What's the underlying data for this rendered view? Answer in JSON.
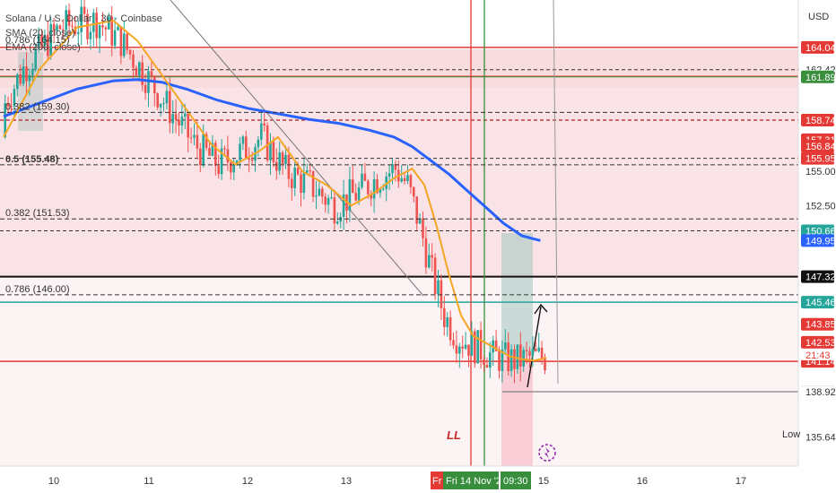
{
  "header": {
    "symbol": "Solana / U.S. Dollar · 30 · Coinbase",
    "sma_label": "SMA (20, close)",
    "ema_label": "EMA (200, close)",
    "currency": "USD"
  },
  "colors": {
    "up": "#26a69a",
    "down": "#ef5350",
    "sma": "#f5a623",
    "ema": "#2962ff",
    "zone": "#f2c9cc",
    "red_line": "#e53935",
    "green_line": "#388e3c",
    "teal_line": "#26a69a"
  },
  "fib_levels": [
    {
      "label": "0.786 (164.15)",
      "price": 164.15
    },
    {
      "label": "0.382 (159.30)",
      "price": 159.3
    },
    {
      "label": "0.5 (155.48)",
      "price": 155.48
    },
    {
      "label": "0.382 (151.53)",
      "price": 151.53
    },
    {
      "label": "0.786 (146.00)",
      "price": 146.0
    }
  ],
  "annotations": {
    "ll": "LL"
  },
  "low_label": "Low",
  "countdown": "21:43",
  "crosshair_date": "Fri 14 Nov '25",
  "crosshair_time": "09:30",
  "crosshair_day_abbrev": "Fr",
  "chart_data": {
    "type": "candlestick",
    "interval": "30m",
    "x_axis_labels": [
      "10",
      "11",
      "12",
      "13",
      "Fri 14 Nov '25",
      "15",
      "16",
      "17"
    ],
    "y_axis_ticks": [
      155.0,
      152.5
    ],
    "ylim": [
      133.5,
      167.5
    ],
    "price_tags": [
      {
        "value": "164.04",
        "style": "red"
      },
      {
        "value": "162.42",
        "style": "plain"
      },
      {
        "value": "161.93",
        "style": "plain"
      },
      {
        "value": "161.89",
        "style": "green"
      },
      {
        "value": "158.74",
        "style": "red"
      },
      {
        "value": "157.31",
        "style": "red"
      },
      {
        "value": "156.84",
        "style": "red"
      },
      {
        "value": "155.95",
        "style": "red"
      },
      {
        "value": "150.66",
        "style": "teal"
      },
      {
        "value": "149.95",
        "style": "blue"
      },
      {
        "value": "147.32",
        "style": "black"
      },
      {
        "value": "145.46",
        "style": "teal"
      },
      {
        "value": "143.85",
        "style": "red"
      },
      {
        "value": "142.53",
        "style": "red"
      },
      {
        "value": "141.27",
        "style": "yellow"
      },
      {
        "value": "141.14",
        "style": "red"
      },
      {
        "value": "138.93",
        "style": "gray"
      },
      {
        "value": "138.92",
        "style": "plain"
      },
      {
        "value": "135.64",
        "style": "plain"
      }
    ],
    "sma_20": [
      [
        0,
        157.5
      ],
      [
        12,
        162.5
      ],
      [
        24,
        165.5
      ],
      [
        36,
        166.0
      ],
      [
        44,
        164.5
      ],
      [
        52,
        162.0
      ],
      [
        60,
        159.5
      ],
      [
        68,
        157.0
      ],
      [
        76,
        155.5
      ],
      [
        84,
        156.5
      ],
      [
        90,
        157.5
      ],
      [
        98,
        155.0
      ],
      [
        106,
        154.0
      ],
      [
        114,
        152.5
      ],
      [
        122,
        153.5
      ],
      [
        128,
        154.5
      ],
      [
        134,
        155.2
      ],
      [
        138,
        154.0
      ],
      [
        142,
        151.0
      ],
      [
        146,
        147.5
      ],
      [
        150,
        144.5
      ],
      [
        154,
        143.0
      ],
      [
        158,
        142.5
      ],
      [
        162,
        142.0
      ],
      [
        166,
        141.5
      ],
      [
        170,
        141.3
      ],
      [
        174,
        141.2
      ],
      [
        178,
        141.4
      ]
    ],
    "ema_200": [
      [
        0,
        159.0
      ],
      [
        12,
        160.0
      ],
      [
        24,
        161.0
      ],
      [
        36,
        161.6
      ],
      [
        44,
        161.7
      ],
      [
        52,
        161.5
      ],
      [
        60,
        161.0
      ],
      [
        70,
        160.2
      ],
      [
        80,
        159.6
      ],
      [
        90,
        159.2
      ],
      [
        100,
        158.8
      ],
      [
        110,
        158.5
      ],
      [
        120,
        158.0
      ],
      [
        128,
        157.5
      ],
      [
        134,
        156.8
      ],
      [
        140,
        155.8
      ],
      [
        146,
        154.8
      ],
      [
        152,
        153.6
      ],
      [
        158,
        152.4
      ],
      [
        164,
        151.2
      ],
      [
        170,
        150.3
      ],
      [
        176,
        149.95
      ]
    ],
    "key_levels": [
      {
        "price": 164.04,
        "color": "red"
      },
      {
        "price": 162.42,
        "color": "dashed"
      },
      {
        "price": 161.93,
        "color": "red"
      },
      {
        "price": 161.89,
        "color": "green"
      },
      {
        "price": 158.74,
        "color": "red-dashed"
      },
      {
        "price": 155.95,
        "color": "dashed"
      },
      {
        "price": 150.66,
        "color": "dashed"
      },
      {
        "price": 147.32,
        "color": "black"
      },
      {
        "price": 145.46,
        "color": "teal"
      },
      {
        "price": 141.14,
        "color": "red"
      },
      {
        "price": 138.93,
        "color": "gray"
      }
    ]
  }
}
